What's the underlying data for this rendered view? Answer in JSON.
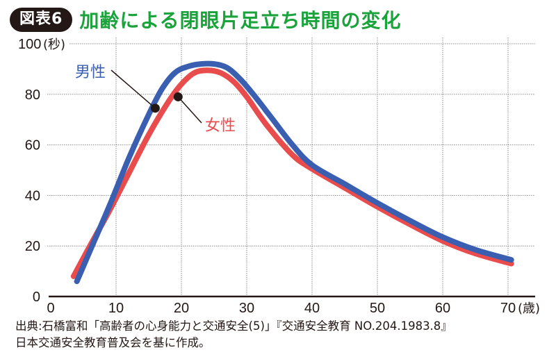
{
  "header": {
    "badge": "図表6",
    "title": "加齢による閉眼片足立ち時間の変化"
  },
  "chart_data": {
    "type": "line",
    "title": "加齢による閉眼片足立ち時間の変化",
    "xlabel": "(歳)",
    "ylabel": "(秒)",
    "xlim": [
      0,
      75
    ],
    "ylim": [
      0,
      100
    ],
    "xticks": [
      0,
      10,
      20,
      30,
      40,
      50,
      60,
      70
    ],
    "yticks": [
      0,
      20,
      40,
      60,
      80,
      100
    ],
    "grid": true,
    "series": [
      {
        "name": "女性",
        "color": "#e84c4c",
        "x": [
          3.5,
          6,
          9,
          12,
          15,
          18,
          20,
          22,
          24,
          26,
          28,
          30,
          33,
          37,
          40,
          45,
          50,
          55,
          60,
          65,
          70.5
        ],
        "y": [
          8,
          20,
          34,
          49,
          64,
          77,
          84,
          88.5,
          89.5,
          88.5,
          85,
          79,
          68,
          56,
          50.5,
          43,
          35.5,
          28.5,
          22,
          17,
          13
        ]
      },
      {
        "name": "男性",
        "color": "#3a5fb0",
        "x": [
          4,
          6,
          9,
          12,
          15,
          17,
          19,
          21,
          23,
          25,
          27,
          29,
          31,
          34,
          37,
          40,
          45,
          50,
          55,
          60,
          65,
          70.5
        ],
        "y": [
          6,
          18,
          36,
          55,
          72,
          82,
          88.5,
          91,
          92,
          92,
          90.5,
          86,
          80,
          70,
          60,
          52,
          44.5,
          37,
          30,
          23.5,
          18.5,
          14.5
        ]
      }
    ],
    "annotations": [
      {
        "text": "男性",
        "series": "男性",
        "x": 16,
        "y": 74.5
      },
      {
        "text": "女性",
        "series": "女性",
        "x": 19.5,
        "y": 79
      }
    ],
    "ytick_labels": [
      "0",
      "20",
      "40",
      "60",
      "80",
      "100"
    ],
    "xtick_labels": [
      "0",
      "10",
      "20",
      "30",
      "40",
      "50",
      "60",
      "70"
    ],
    "yunit": "(秒)",
    "xunit": "(歳)"
  },
  "source": {
    "line1": "出典:石橋富和「高齢者の心身能力と交通安全(5)」『交通安全教育 NO.204.1983.8』",
    "line2": "日本交通安全教育普及会を基に作成。"
  }
}
